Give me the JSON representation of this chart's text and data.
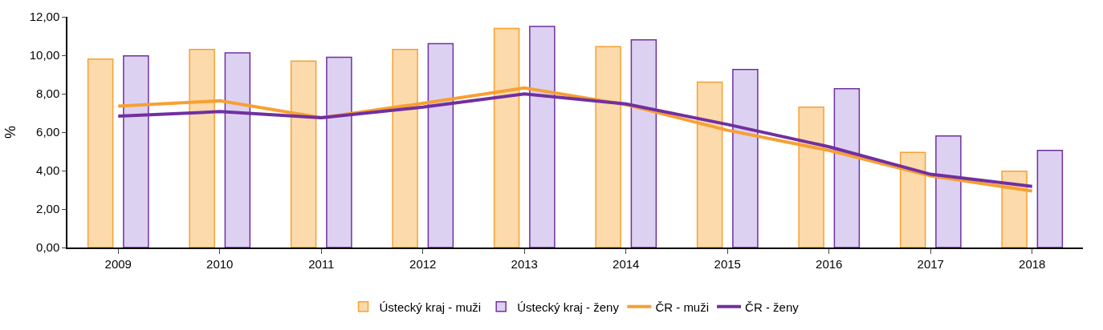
{
  "chart_data": {
    "type": "bar",
    "ylabel": "%",
    "categories": [
      "2009",
      "2010",
      "2011",
      "2012",
      "2013",
      "2014",
      "2015",
      "2016",
      "2017",
      "2018"
    ],
    "series": [
      {
        "name": "Ústecký kraj - muži",
        "color": "#fcdaab",
        "values": [
          9.8,
          10.3,
          9.7,
          10.3,
          11.4,
          10.45,
          8.6,
          7.3,
          4.95,
          3.97
        ]
      },
      {
        "name": "Ústecký kraj - ženy",
        "color": "#ddd1f2",
        "values": [
          9.97,
          10.13,
          9.9,
          10.6,
          11.5,
          10.8,
          9.26,
          8.26,
          5.8,
          5.05
        ]
      },
      {
        "name": "ČR - muži",
        "type": "line",
        "color": "#f7a032",
        "values": [
          7.35,
          7.63,
          6.75,
          7.5,
          8.3,
          7.43,
          6.1,
          5.05,
          3.73,
          2.94
        ]
      },
      {
        "name": "ČR - ženy",
        "type": "line",
        "color": "#7030a0",
        "values": [
          6.83,
          7.07,
          6.75,
          7.3,
          7.99,
          7.47,
          6.4,
          5.24,
          3.81,
          3.18
        ]
      }
    ],
    "ylim": [
      0,
      12
    ],
    "yticks": [
      {
        "value": 0,
        "label": "0,00"
      },
      {
        "value": 2,
        "label": "2,00"
      },
      {
        "value": 4,
        "label": "4,00"
      },
      {
        "value": 6,
        "label": "6,00"
      },
      {
        "value": 8,
        "label": "8,00"
      },
      {
        "value": 10,
        "label": "10,00"
      },
      {
        "value": 12,
        "label": "12,00"
      }
    ],
    "grid": false,
    "legend": "bottom",
    "marker": "none",
    "line_style": "solid"
  }
}
